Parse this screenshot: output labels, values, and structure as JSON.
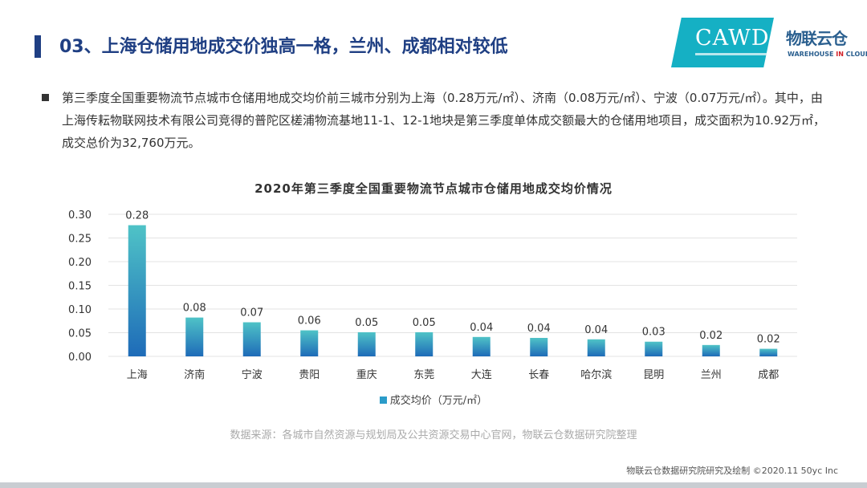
{
  "header": {
    "title": "03、上海仓储用地成交价独高一格，兰州、成都相对较低",
    "logo_cawd": "CAWD",
    "logo_wnc_cn": "物联云仓",
    "logo_wnc_en_pre": "WAREHOUSE ",
    "logo_wnc_en_mid": "IN",
    "logo_wnc_en_post": " CLOUD"
  },
  "body": {
    "paragraph": "第三季度全国重要物流节点城市仓储用地成交均价前三城市分别为上海（0.28万元/㎡）、济南（0.08万元/㎡）、宁波（0.07万元/㎡）。其中，由上海传耘物联网技术有限公司竞得的普陀区槎浦物流基地11-1、12-1地块是第三季度单体成交额最大的仓储用地项目，成交面积为10.92万㎡，成交总价为32,760万元。"
  },
  "chart_data": {
    "type": "bar",
    "title": "2020年第三季度全国重要物流节点城市仓储用地成交均价情况",
    "categories": [
      "上海",
      "济南",
      "宁波",
      "贵阳",
      "重庆",
      "东莞",
      "大连",
      "长春",
      "哈尔滨",
      "昆明",
      "兰州",
      "成都"
    ],
    "series": [
      {
        "name": "成交均价（万元/㎡）",
        "values": [
          0.28,
          0.08,
          0.07,
          0.06,
          0.05,
          0.05,
          0.04,
          0.04,
          0.04,
          0.03,
          0.02,
          0.02
        ],
        "bar_values": [
          0.277,
          0.082,
          0.072,
          0.055,
          0.051,
          0.051,
          0.041,
          0.039,
          0.036,
          0.031,
          0.024,
          0.016
        ]
      }
    ],
    "data_labels": [
      "0.28",
      "0.08",
      "0.07",
      "0.06",
      "0.05",
      "0.05",
      "0.04",
      "0.04",
      "0.04",
      "0.03",
      "0.02",
      "0.02"
    ],
    "y_ticks": [
      "0.00",
      "0.05",
      "0.10",
      "0.15",
      "0.20",
      "0.25",
      "0.30"
    ],
    "ylim": [
      0,
      0.3
    ],
    "grid": true,
    "legend": "bottom",
    "colors": {
      "bar_top": "#4fc3c7",
      "bar_bottom": "#1e6bb8",
      "grid": "#e3e3e3",
      "axis_text": "#333333"
    }
  },
  "source": "数据来源：各城市自然资源与规划局及公共资源交易中心官网，物联云仓数据研究院整理",
  "footer": "物联云仓数据研究院研究及绘制   ©2020.11 50yc Inc"
}
